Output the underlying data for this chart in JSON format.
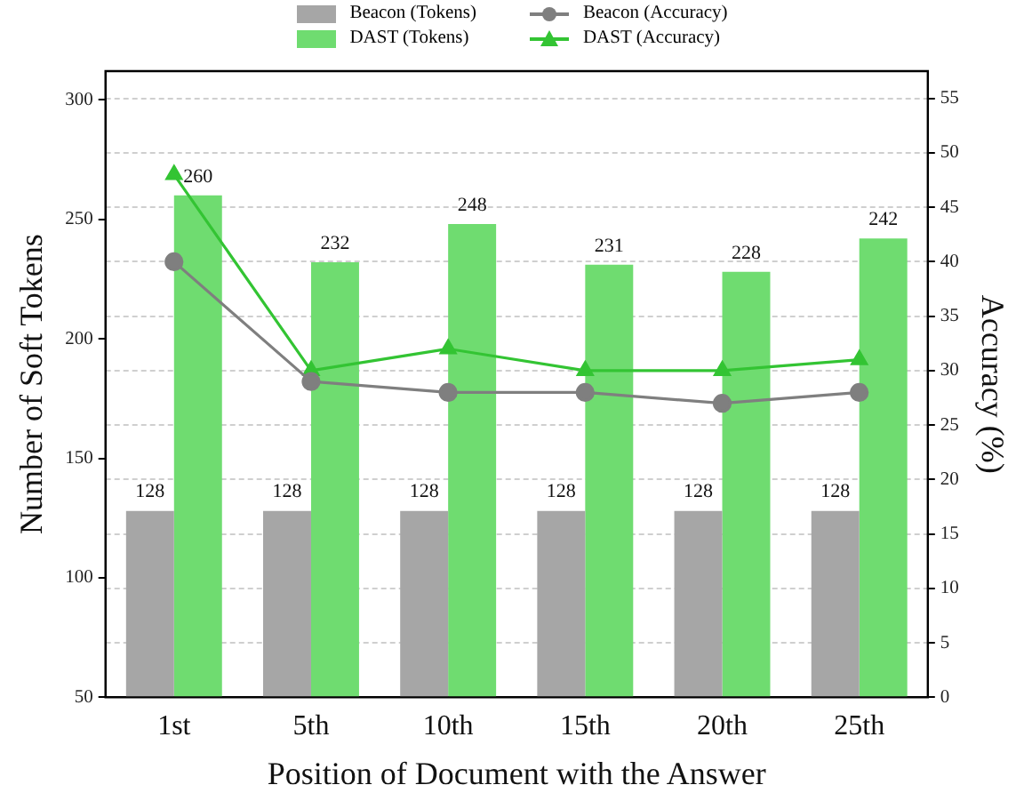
{
  "chart_data": {
    "type": "bar",
    "categories": [
      "1st",
      "5th",
      "10th",
      "15th",
      "20th",
      "25th"
    ],
    "xlabel": "Position of Document with the Answer",
    "ylabel": "Number of Soft Tokens",
    "y2label": "Accuracy (%)",
    "series": [
      {
        "name": "Beacon (Tokens)",
        "color": "#a6a6a6",
        "values": [
          128,
          128,
          128,
          128,
          128,
          128
        ],
        "value_labels": [
          "128",
          "128",
          "128",
          "128",
          "128",
          "128"
        ]
      },
      {
        "name": "DAST (Tokens)",
        "color": "#6fdc70",
        "values": [
          260,
          232,
          248,
          231,
          228,
          242
        ],
        "value_labels": [
          "260",
          "232",
          "248",
          "231",
          "228",
          "242"
        ]
      },
      {
        "name": "Beacon (Accuracy)",
        "type": "line",
        "axis": "y2",
        "marker": "circle",
        "color": "#7f7f7f",
        "values": [
          40,
          29,
          28,
          28,
          27,
          28
        ]
      },
      {
        "name": "DAST (Accuracy)",
        "type": "line",
        "axis": "y2",
        "marker": "triangle",
        "color": "#33c433",
        "values": [
          48,
          30,
          32,
          30,
          30,
          31
        ]
      }
    ],
    "ylim": [
      50,
      312
    ],
    "yticks": [
      50,
      100,
      150,
      200,
      250,
      300
    ],
    "y2lim": [
      0,
      57.5
    ],
    "y2ticks": [
      0,
      5,
      10,
      15,
      20,
      25,
      30,
      35,
      40,
      45,
      50,
      55
    ],
    "grid": "y",
    "legend": "top"
  }
}
